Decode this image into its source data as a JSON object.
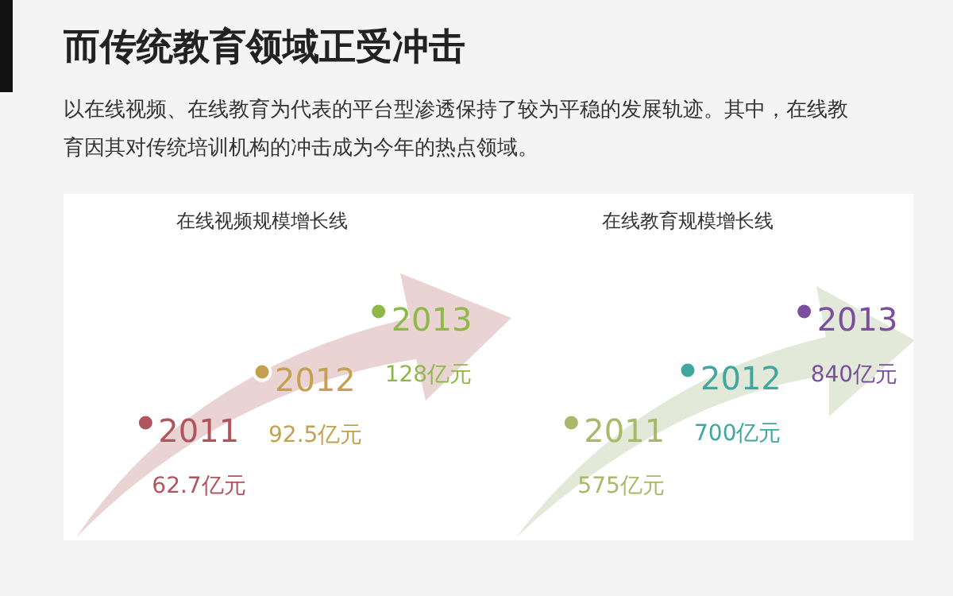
{
  "chart_data": [
    {
      "type": "other",
      "title": "而传统教育领域正受冲击",
      "subtitle": "以在线视频、在线教育为代表的平台型渗透保持了较为平稳的发展轨迹。其中，在线教育因其对传统培训机构的冲击成为今年的热点领域。"
    },
    {
      "type": "other",
      "title": "在线视频规模增长线",
      "categories": [
        "2011",
        "2012",
        "2013"
      ],
      "values": [
        62.7,
        92.5,
        128
      ],
      "colors": [
        "#b0545e",
        "#c4a050",
        "#8fb848"
      ],
      "value_labels": [
        "62.7亿元",
        "92.5亿元",
        "128亿元"
      ]
    },
    {
      "type": "other",
      "title": "在线教育规模增长线",
      "categories": [
        "2011",
        "2012",
        "2013"
      ],
      "values": [
        575,
        700,
        840
      ],
      "colors": [
        "#a9b86a",
        "#3fa6a0",
        "#7a4f9e"
      ],
      "value_labels": [
        "575亿元",
        "700亿元",
        "840亿元"
      ]
    }
  ]
}
